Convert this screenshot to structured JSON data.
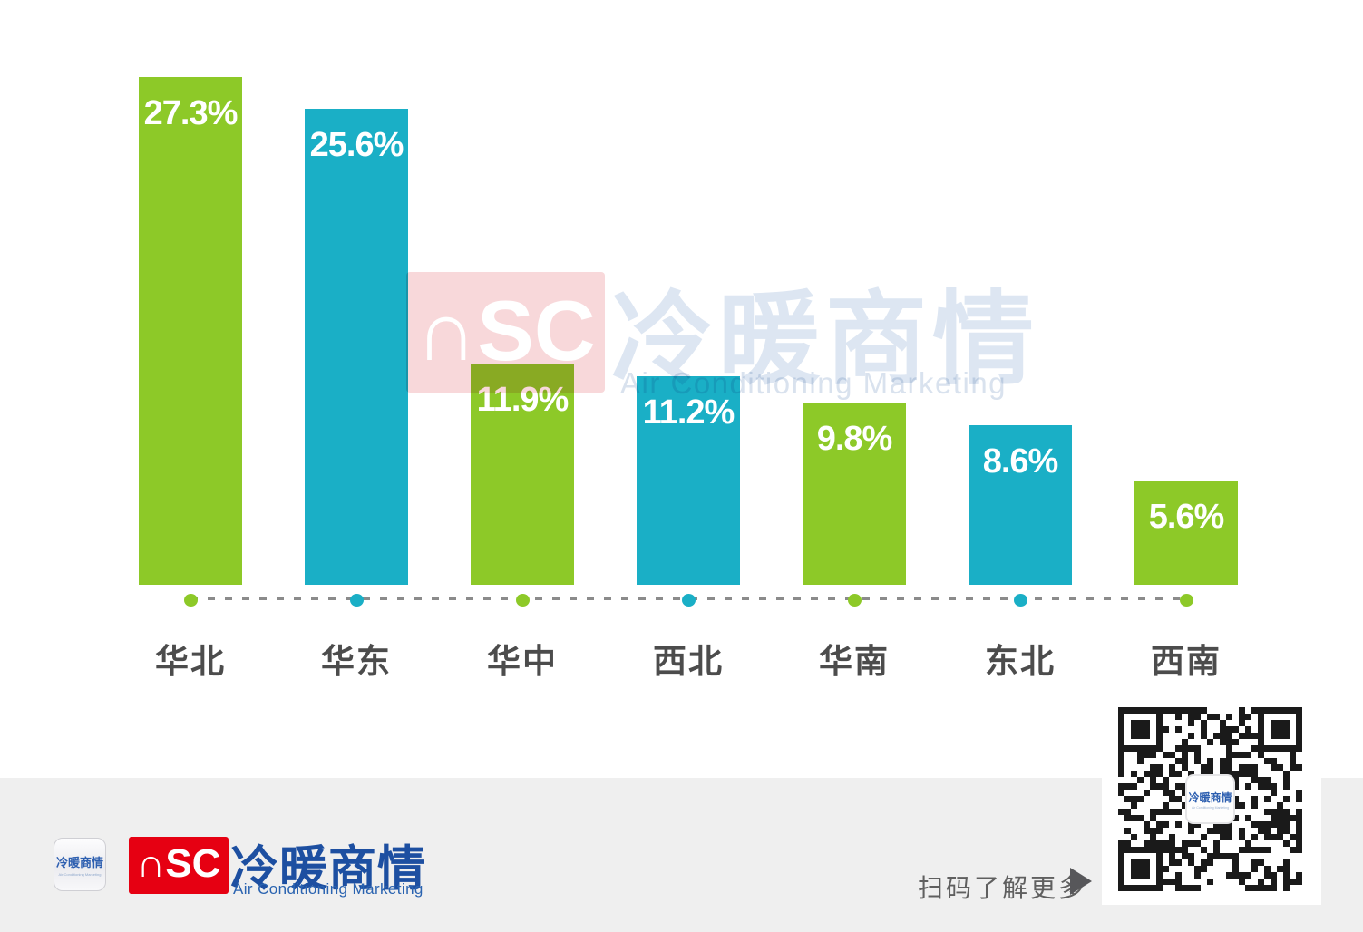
{
  "chart_data": {
    "type": "bar",
    "categories": [
      "华北",
      "华东",
      "华中",
      "西北",
      "华南",
      "东北",
      "西南"
    ],
    "values": [
      27.3,
      25.6,
      11.9,
      11.2,
      9.8,
      8.6,
      5.6
    ],
    "value_labels": [
      "27.3%",
      "25.6%",
      "11.9%",
      "11.2%",
      "9.8%",
      "8.6%",
      "5.6%"
    ],
    "bar_colors": [
      "#8dc928",
      "#1aafc6",
      "#8dc928",
      "#1aafc6",
      "#8dc928",
      "#1aafc6",
      "#8dc928"
    ],
    "title": "",
    "xlabel": "",
    "ylabel": "",
    "unit": "%",
    "ylim": [
      0,
      30
    ],
    "grid": false,
    "legend": "none",
    "baseline_style": "dashed line with colored dot under each bar",
    "value_label_color": "#ffffff",
    "category_label_color": "#4c4c4c",
    "baseline_dash_color": "#8b8b8b"
  },
  "watermark": {
    "nsc_logo_text": "∩SC",
    "nsc_box_color": "#f8d8da",
    "cn_text": "冷暖商情",
    "cn_color": "#dde6f2",
    "en_text": "Air Conditioning Marketing",
    "en_color": "#d9e2ee"
  },
  "footer": {
    "band_color": "#efefef",
    "app_icon_cn": "冷暖商情",
    "app_icon_en": "Air Conditioning Marketing",
    "brand_logo_text": "∩SC",
    "brand_red": "#e60012",
    "brand_cn": "冷暖商情",
    "brand_blue": "#1d4fa1",
    "brand_en": "Air Conditioning Marketing",
    "scan_text": "扫码了解更多",
    "arrow_icon": "right-triangle"
  },
  "qr": {
    "center_logo_cn": "冷暖商情",
    "center_logo_en": "Air Conditioning Marketing"
  }
}
